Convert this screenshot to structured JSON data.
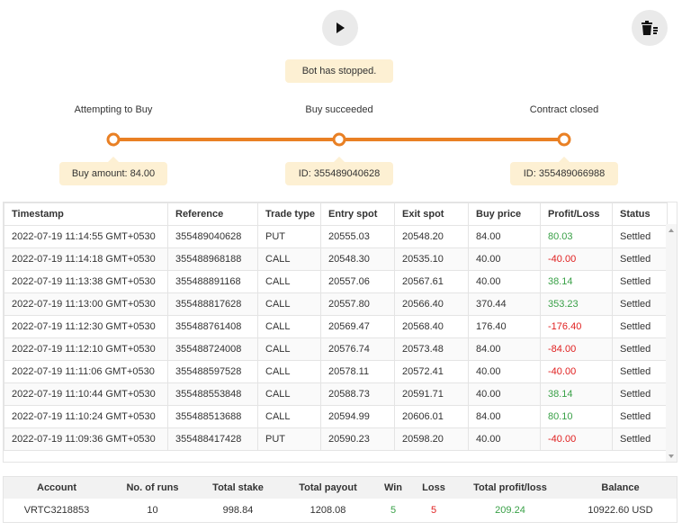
{
  "status": "Bot has stopped.",
  "steps": [
    {
      "label": "Attempting to Buy",
      "info": "Buy amount: 84.00"
    },
    {
      "label": "Buy succeeded",
      "info": "ID: 355489040628"
    },
    {
      "label": "Contract closed",
      "info": "ID: 355489066988"
    }
  ],
  "table": {
    "headers": [
      "Timestamp",
      "Reference",
      "Trade type",
      "Entry spot",
      "Exit spot",
      "Buy price",
      "Profit/Loss",
      "Status"
    ],
    "rows": [
      [
        "2022-07-19 11:14:55 GMT+0530",
        "355489040628",
        "PUT",
        "20555.03",
        "20548.20",
        "84.00",
        "80.03",
        "Settled"
      ],
      [
        "2022-07-19 11:14:18 GMT+0530",
        "355488968188",
        "CALL",
        "20548.30",
        "20535.10",
        "40.00",
        "-40.00",
        "Settled"
      ],
      [
        "2022-07-19 11:13:38 GMT+0530",
        "355488891168",
        "CALL",
        "20557.06",
        "20567.61",
        "40.00",
        "38.14",
        "Settled"
      ],
      [
        "2022-07-19 11:13:00 GMT+0530",
        "355488817628",
        "CALL",
        "20557.80",
        "20566.40",
        "370.44",
        "353.23",
        "Settled"
      ],
      [
        "2022-07-19 11:12:30 GMT+0530",
        "355488761408",
        "CALL",
        "20569.47",
        "20568.40",
        "176.40",
        "-176.40",
        "Settled"
      ],
      [
        "2022-07-19 11:12:10 GMT+0530",
        "355488724008",
        "CALL",
        "20576.74",
        "20573.48",
        "84.00",
        "-84.00",
        "Settled"
      ],
      [
        "2022-07-19 11:11:06 GMT+0530",
        "355488597528",
        "CALL",
        "20578.11",
        "20572.41",
        "40.00",
        "-40.00",
        "Settled"
      ],
      [
        "2022-07-19 11:10:44 GMT+0530",
        "355488553848",
        "CALL",
        "20588.73",
        "20591.71",
        "40.00",
        "38.14",
        "Settled"
      ],
      [
        "2022-07-19 11:10:24 GMT+0530",
        "355488513688",
        "CALL",
        "20594.99",
        "20606.01",
        "84.00",
        "80.10",
        "Settled"
      ],
      [
        "2022-07-19 11:09:36 GMT+0530",
        "355488417428",
        "PUT",
        "20590.23",
        "20598.20",
        "40.00",
        "-40.00",
        "Settled"
      ]
    ]
  },
  "summary": {
    "headers": [
      "Account",
      "No. of runs",
      "Total stake",
      "Total payout",
      "Win",
      "Loss",
      "Total profit/loss",
      "Balance"
    ],
    "values": [
      "VRTC3218853",
      "10",
      "998.84",
      "1208.08",
      "5",
      "5",
      "209.24",
      "10922.60 USD"
    ]
  }
}
